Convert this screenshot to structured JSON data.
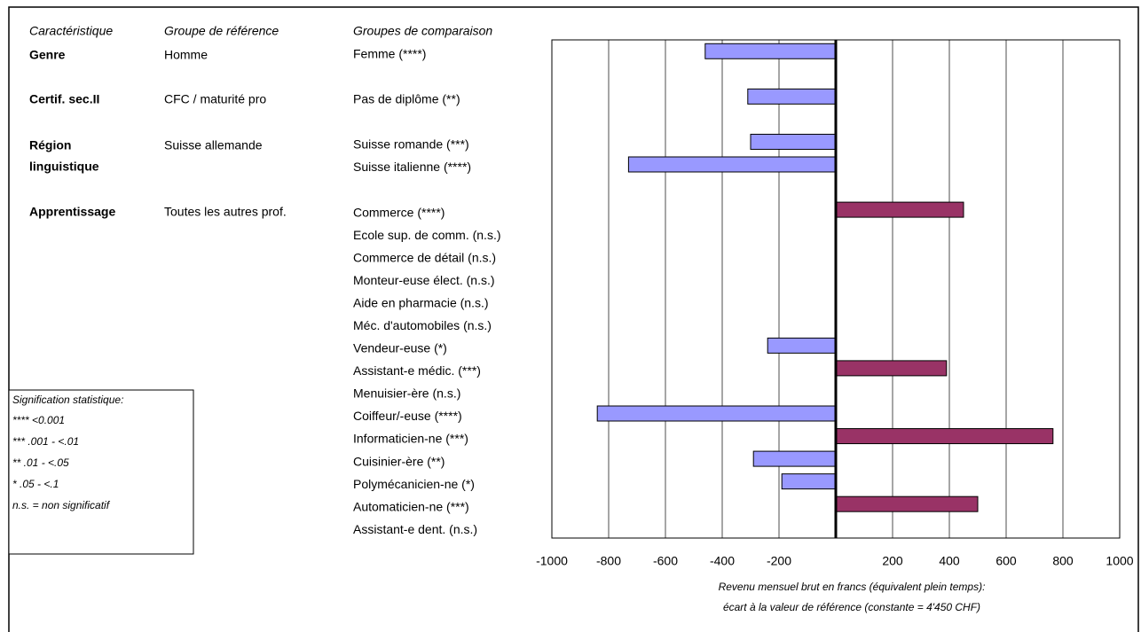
{
  "chart_data": {
    "type": "bar",
    "orientation": "horizontal",
    "categories": [
      "Femme (****)",
      null,
      "Pas de diplôme (**)",
      null,
      "Suisse romande (***)",
      "Suisse italienne (****)",
      null,
      "Commerce (****)",
      "Ecole sup. de comm. (n.s.)",
      "Commerce de détail (n.s.)",
      "Monteur-euse élect. (n.s.)",
      "Aide en pharmacie (n.s.)",
      "Méc. d'automobiles (n.s.)",
      "Vendeur-euse (*)",
      "Assistant-e médic. (***)",
      "Menuisier-ère (n.s.)",
      "Coiffeur/-euse (****)",
      "Informaticien-ne (***)",
      "Cuisinier-ère (**)",
      "Polymécanicien-ne (*)",
      "Automaticien-ne (***)",
      "Assistant-e dent. (n.s.)"
    ],
    "values": [
      -460,
      null,
      -310,
      null,
      -300,
      -730,
      null,
      450,
      null,
      null,
      null,
      null,
      null,
      -240,
      390,
      null,
      -840,
      765,
      -290,
      -190,
      500,
      null
    ],
    "color_negative": "#9999ff",
    "color_positive": "#993366",
    "xlim": [
      -1000,
      1000
    ],
    "xticks": [
      -1000,
      -800,
      -600,
      -400,
      -200,
      200,
      400,
      600,
      800,
      1000
    ],
    "grid": true,
    "xlabel": [
      "Revenu mensuel brut en francs (équivalent plein temps):",
      "écart à la valeur de référence (constante = 4'450 CHF)"
    ]
  },
  "table": {
    "headers": [
      "Caractéristique",
      "Groupe de référence",
      "Groupes de comparaison"
    ],
    "rows": [
      {
        "characteristic": [
          "Genre"
        ],
        "reference": "Homme"
      },
      {
        "characteristic": [
          "Certif. sec.II"
        ],
        "reference": "CFC / maturité pro"
      },
      {
        "characteristic": [
          "Région",
          "linguistique"
        ],
        "reference": "Suisse allemande"
      },
      {
        "characteristic": [
          "Apprentissage"
        ],
        "reference": "Toutes les autres prof."
      }
    ]
  },
  "significance": {
    "title": "Signification statistique:",
    "lines": [
      "**** <0.001",
      "*** .001 - <.01",
      "** .01 - <.05",
      "* .05 - <.1",
      "n.s. = non significatif"
    ]
  }
}
